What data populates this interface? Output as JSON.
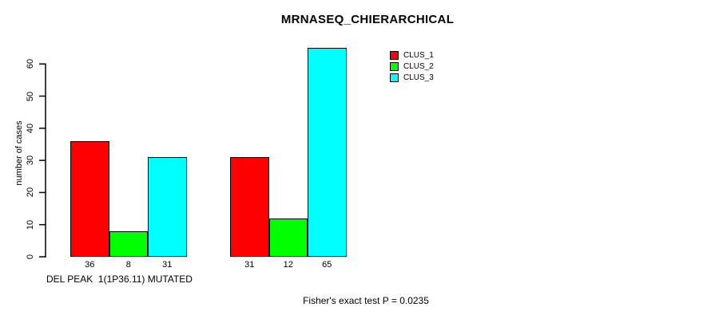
{
  "chart_data": {
    "type": "bar",
    "title": "MRNASEQ_CHIERARCHICAL",
    "ylabel": "number of cases",
    "xlabel": "DEL PEAK  1(1P36.11) MUTATED",
    "annotation": "Fisher's exact test P = 0.0235",
    "ylim": [
      0,
      65
    ],
    "yticks": [
      0,
      10,
      20,
      30,
      40,
      50,
      60
    ],
    "grid": false,
    "legend_position": "top-right",
    "n_groups": 2,
    "series": [
      {
        "name": "CLUS_1",
        "color": "#ff0000",
        "values": [
          36,
          31
        ]
      },
      {
        "name": "CLUS_2",
        "color": "#00ff00",
        "values": [
          8,
          12
        ]
      },
      {
        "name": "CLUS_3",
        "color": "#00ffff",
        "values": [
          31,
          65
        ]
      }
    ],
    "bar_value_labels": [
      [
        "36",
        "8",
        "31"
      ],
      [
        "31",
        "12",
        "65"
      ]
    ],
    "axis_color": "#000000",
    "text_color": "#000000"
  }
}
